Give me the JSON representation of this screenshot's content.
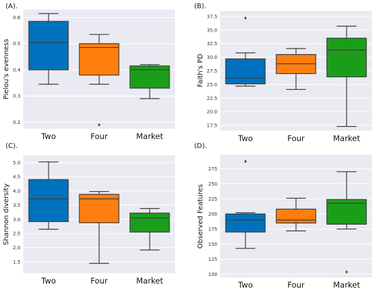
{
  "chart_data": [
    {
      "type": "box",
      "panel_label": "(A).",
      "ylabel": "Pielou's evenness",
      "categories": [
        "Two",
        "Four",
        "Market"
      ],
      "colors": [
        "#0072bd",
        "#ff7f0e",
        "#1a9e1a"
      ],
      "yticks": [
        0.2,
        0.3,
        0.4,
        0.5,
        0.6
      ],
      "ylim": [
        0.175,
        0.63
      ],
      "grid": true,
      "boxes": [
        {
          "category": "Two",
          "whisker_low": 0.345,
          "q1": 0.4,
          "median": 0.505,
          "q3": 0.585,
          "whisker_high": 0.615,
          "outliers": []
        },
        {
          "category": "Four",
          "whisker_low": 0.345,
          "q1": 0.38,
          "median": 0.485,
          "q3": 0.5,
          "whisker_high": 0.535,
          "outliers": [
            0.19
          ]
        },
        {
          "category": "Market",
          "whisker_low": 0.29,
          "q1": 0.33,
          "median": 0.4,
          "q3": 0.415,
          "whisker_high": 0.42,
          "outliers": []
        }
      ]
    },
    {
      "type": "box",
      "panel_label": "(B).",
      "ylabel": "Faith's PD",
      "categories": [
        "Two",
        "Four",
        "Market"
      ],
      "colors": [
        "#0072bd",
        "#ff7f0e",
        "#1a9e1a"
      ],
      "yticks": [
        17.5,
        20.0,
        22.5,
        25.0,
        27.5,
        30.0,
        32.5,
        35.0,
        37.5
      ],
      "ytick_labels": [
        "17.5",
        "20.0",
        "22.5",
        "25.0",
        "27.5",
        "30.0",
        "32.5",
        "35.0",
        "37.5"
      ],
      "ylim": [
        16.5,
        38.5
      ],
      "grid": true,
      "boxes": [
        {
          "category": "Two",
          "whisker_low": 24.7,
          "q1": 25.1,
          "median": 26.2,
          "q3": 29.7,
          "whisker_high": 30.8,
          "outliers": [
            37.2
          ]
        },
        {
          "category": "Four",
          "whisker_low": 24.1,
          "q1": 27.0,
          "median": 28.8,
          "q3": 30.5,
          "whisker_high": 31.6,
          "outliers": []
        },
        {
          "category": "Market",
          "whisker_low": 17.3,
          "q1": 26.4,
          "median": 31.3,
          "q3": 33.5,
          "whisker_high": 35.7,
          "outliers": []
        }
      ]
    },
    {
      "type": "box",
      "panel_label": "(C).",
      "ylabel": "Shannon diversity",
      "categories": [
        "Two",
        "Four",
        "Market"
      ],
      "colors": [
        "#0072bd",
        "#ff7f0e",
        "#1a9e1a"
      ],
      "yticks": [
        1.5,
        2.0,
        2.5,
        3.0,
        3.5,
        4.0,
        4.5,
        5.0
      ],
      "ytick_labels": [
        "1.5",
        "2.0",
        "2.5",
        "3.0",
        "3.5",
        "4.0",
        "4.5",
        "5.0"
      ],
      "ylim": [
        1.1,
        5.25
      ],
      "grid": true,
      "boxes": [
        {
          "category": "Two",
          "whisker_low": 2.65,
          "q1": 2.92,
          "median": 3.72,
          "q3": 4.4,
          "whisker_high": 5.02,
          "outliers": []
        },
        {
          "category": "Four",
          "whisker_low": 1.45,
          "q1": 2.88,
          "median": 3.72,
          "q3": 3.88,
          "whisker_high": 3.98,
          "outliers": []
        },
        {
          "category": "Market",
          "whisker_low": 1.92,
          "q1": 2.55,
          "median": 3.05,
          "q3": 3.22,
          "whisker_high": 3.38,
          "outliers": []
        }
      ]
    },
    {
      "type": "box",
      "panel_label": "(D).",
      "ylabel": "Observed Features",
      "categories": [
        "Two",
        "Four",
        "Market"
      ],
      "colors": [
        "#0072bd",
        "#ff7f0e",
        "#1a9e1a"
      ],
      "yticks": [
        100,
        125,
        150,
        175,
        200,
        225,
        250,
        275
      ],
      "ylim": [
        95,
        298
      ],
      "grid": true,
      "boxes": [
        {
          "category": "Two",
          "whisker_low": 143,
          "q1": 170,
          "median": 190,
          "q3": 200,
          "whisker_high": 202,
          "outliers": [
            287
          ]
        },
        {
          "category": "Four",
          "whisker_low": 172,
          "q1": 185,
          "median": 190,
          "q3": 208,
          "whisker_high": 226,
          "outliers": []
        },
        {
          "category": "Market",
          "whisker_low": 175,
          "q1": 183,
          "median": 218,
          "q3": 224,
          "whisker_high": 270,
          "outliers": [
            104
          ]
        }
      ]
    }
  ]
}
